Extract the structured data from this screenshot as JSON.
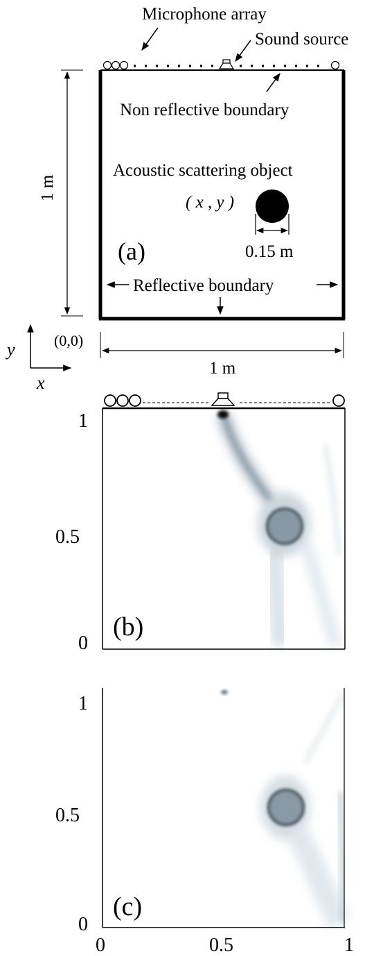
{
  "panel_a": {
    "labels": {
      "microphone_array": "Microphone array",
      "sound_source": "Sound source",
      "non_reflective_boundary": "Non reflective boundary",
      "scattering_object": "Acoustic scattering object",
      "object_coordinate": "( x , y )",
      "diameter": "0.15 m",
      "panel_tag": "(a)",
      "reflective_boundary": "Reflective boundary",
      "height_dim": "1 m",
      "width_dim": "1 m",
      "origin": "(0,0)",
      "axis_y": "y",
      "axis_x": "x"
    }
  },
  "panel_b": {
    "tag": "(b)",
    "y_ticks": [
      "1",
      "0.5",
      "0"
    ]
  },
  "panel_c": {
    "tag": "(c)",
    "y_ticks": [
      "1",
      "0.5",
      "0"
    ],
    "x_ticks": [
      "0",
      "0.5",
      "1"
    ]
  }
}
